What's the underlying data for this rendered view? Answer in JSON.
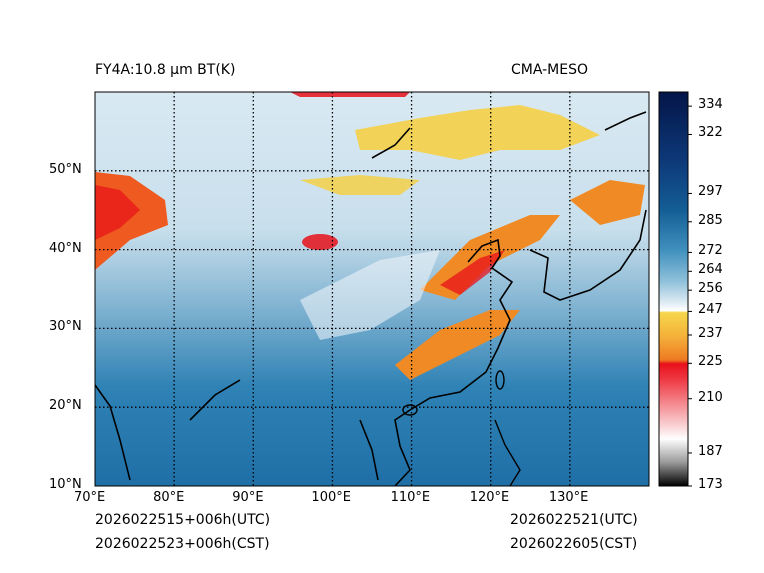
{
  "header": {
    "title_left": "FY4A:10.8 μm BT(K)",
    "title_right": "CMA-MESO"
  },
  "map": {
    "lon_labels": [
      "70°E",
      "80°E",
      "90°E",
      "100°E",
      "110°E",
      "120°E",
      "130°E"
    ],
    "lat_labels": [
      "50°N",
      "40°N",
      "30°N",
      "20°N",
      "10°N"
    ],
    "lon_values": [
      70,
      80,
      90,
      100,
      110,
      120,
      130
    ],
    "lat_values": [
      50,
      40,
      30,
      20,
      10
    ],
    "lon_range": [
      70,
      140
    ],
    "lat_range": [
      10,
      60
    ]
  },
  "colorbar": {
    "ticks": [
      "334",
      "322",
      "297",
      "285",
      "272",
      "264",
      "256",
      "247",
      "237",
      "225",
      "210",
      "187",
      "173"
    ],
    "tick_values": [
      334,
      322,
      297,
      285,
      272,
      264,
      256,
      247,
      237,
      225,
      210,
      187,
      173
    ],
    "range": [
      173,
      340
    ],
    "colors": {
      "navy": "#061a4f",
      "blue": "#1f6fa6",
      "light_blue": "#a9cde0",
      "white": "#f4f8fb",
      "yellow": "#f5d046",
      "orange": "#f08a24",
      "red": "#e8101a",
      "pink": "#f5b3b8",
      "gray": "#8a8a8a",
      "black": "#000000"
    }
  },
  "footer": {
    "left_line1": "2026022515+006h(UTC)",
    "left_line2": "2026022523+006h(CST)",
    "right_line1": "2026022521(UTC)",
    "right_line2": "2026022605(CST)"
  }
}
